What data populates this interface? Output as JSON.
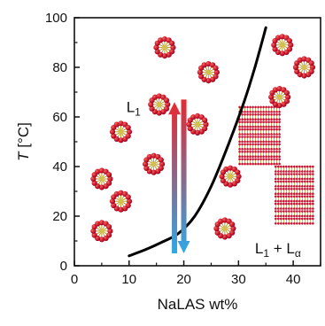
{
  "chart_data": {
    "type": "line",
    "xlabel": "NaLAS wt%",
    "ylabel": {
      "symbol": "T",
      "unit": " [°C]"
    },
    "xlim": [
      0,
      45
    ],
    "ylim": [
      0,
      100
    ],
    "xticks": [
      0,
      10,
      20,
      30,
      40
    ],
    "yticks": [
      0,
      20,
      40,
      60,
      80,
      100
    ],
    "grid": false,
    "series": [
      {
        "values": [
          {
            "x": 10,
            "y": 4
          },
          {
            "x": 13,
            "y": 6.5
          },
          {
            "x": 16,
            "y": 9.5
          },
          {
            "x": 19,
            "y": 13
          },
          {
            "x": 22,
            "y": 20
          },
          {
            "x": 25,
            "y": 32
          },
          {
            "x": 28,
            "y": 48
          },
          {
            "x": 31,
            "y": 66
          },
          {
            "x": 33,
            "y": 80
          },
          {
            "x": 35,
            "y": 96
          }
        ]
      }
    ],
    "annotations": [
      {
        "text": "L",
        "sub": "1",
        "x": 9.5,
        "y": 62
      },
      {
        "text": "L",
        "sub": "1",
        "mid": " + L",
        "sub2": "α",
        "x": 33,
        "y": 5
      }
    ],
    "arrows": [
      {
        "x": 18.3,
        "direction": "up",
        "from_y": 5,
        "to_y": 66,
        "colors": [
          "#2ea8e6",
          "#e8282f"
        ]
      },
      {
        "x": 20.0,
        "direction": "down",
        "from_y": 67,
        "to_y": 5,
        "colors": [
          "#e8282f",
          "#2ea8e6"
        ]
      }
    ],
    "micelles": [
      {
        "x": 16.5,
        "y": 88
      },
      {
        "x": 24.5,
        "y": 78
      },
      {
        "x": 15.5,
        "y": 65
      },
      {
        "x": 22.5,
        "y": 57
      },
      {
        "x": 8.5,
        "y": 54
      },
      {
        "x": 14.5,
        "y": 41
      },
      {
        "x": 5,
        "y": 35
      },
      {
        "x": 8.5,
        "y": 26
      },
      {
        "x": 5,
        "y": 14
      },
      {
        "x": 28.5,
        "y": 36
      },
      {
        "x": 27.5,
        "y": 15
      },
      {
        "x": 38,
        "y": 89
      },
      {
        "x": 42,
        "y": 80
      },
      {
        "x": 37.5,
        "y": 68
      }
    ],
    "lamellar_stacks": [
      {
        "x0": 30.2,
        "x1": 37.6,
        "y0": 40.5,
        "y1": 64.5,
        "layers": 8
      },
      {
        "x0": 36.8,
        "x1": 44.0,
        "y0": 16.5,
        "y1": 40.5,
        "layers": 8
      }
    ]
  }
}
